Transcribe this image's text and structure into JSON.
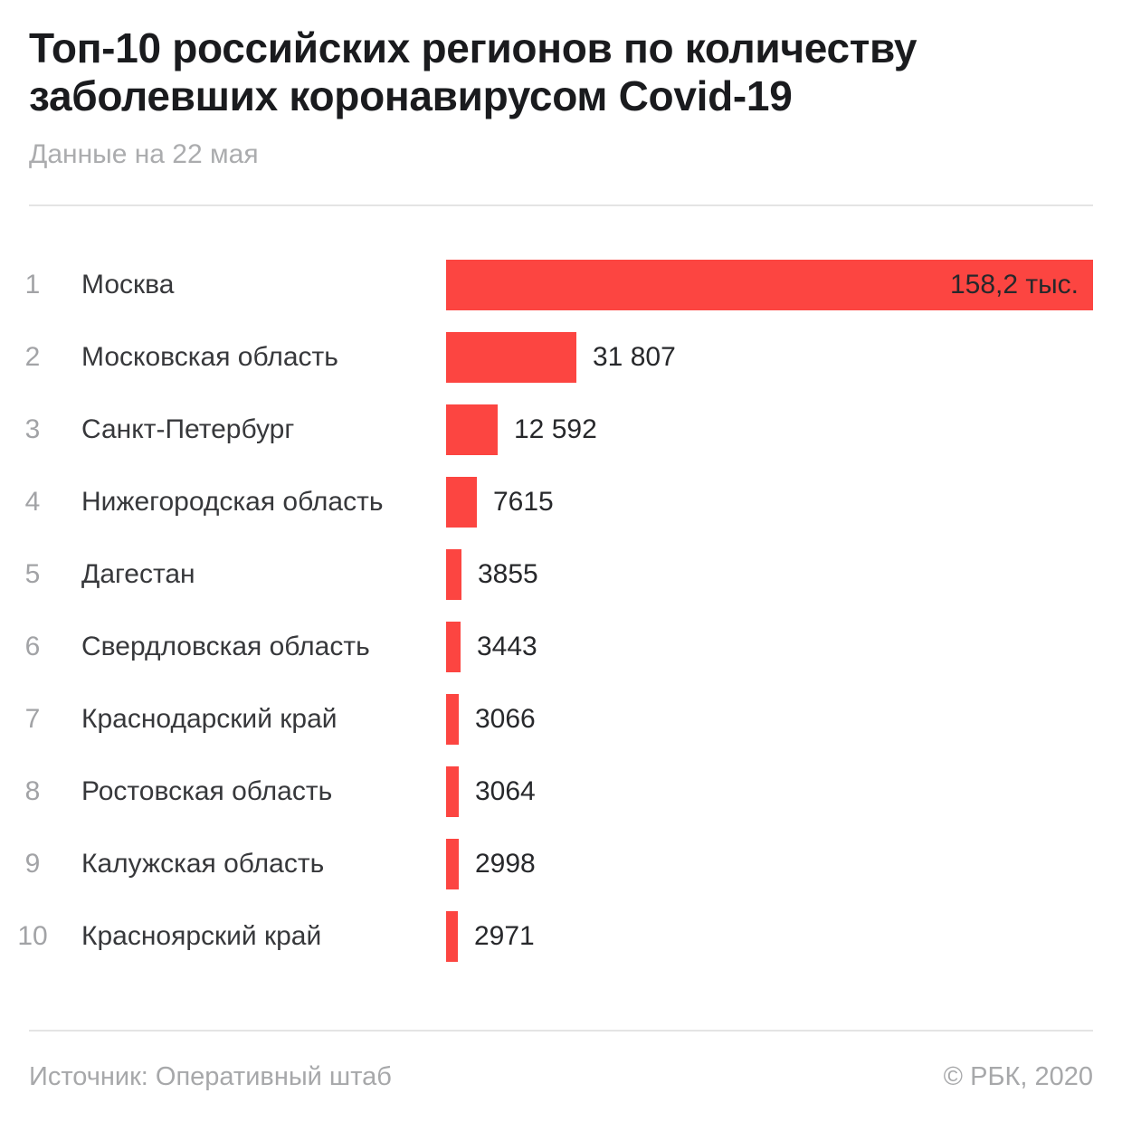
{
  "header": {
    "title": "Топ-10 российских регионов по количеству заболевших коронавирусом Covid-19",
    "subtitle": "Данные на 22 мая"
  },
  "footer": {
    "source": "Источник: Оперативный штаб",
    "copyright": "© РБК, 2020"
  },
  "colors": {
    "bar_red": "#FC4541",
    "title_dark": "#1A1B1E",
    "label_dark": "#37383B",
    "value_dark": "#27282B",
    "muted_gray": "#ABACAE",
    "divider_gray": "#E4E4E4"
  },
  "chart_data": {
    "type": "bar",
    "orientation": "horizontal",
    "title": "Топ-10 российских регионов по количеству заболевших коронавирусом Covid-19",
    "date_note": "Данные на 22 мая",
    "xlim": [
      0,
      158200
    ],
    "max_value": 158200,
    "bar_color": "#FC4541",
    "legend": false,
    "grid": false,
    "categories": [
      "Москва",
      "Московская область",
      "Санкт-Петербург",
      "Нижегородская область",
      "Дагестан",
      "Свердловская область",
      "Краснодарский край",
      "Ростовская область",
      "Калужская область",
      "Красноярский край"
    ],
    "values": [
      158200,
      31807,
      12592,
      7615,
      3855,
      3443,
      3066,
      3064,
      2998,
      2971
    ],
    "rows": [
      {
        "rank": "1",
        "region": "Москва",
        "value": 158200,
        "value_label": "158,2 тыс.",
        "label_inside": true
      },
      {
        "rank": "2",
        "region": "Московская область",
        "value": 31807,
        "value_label": "31 807",
        "label_inside": false
      },
      {
        "rank": "3",
        "region": "Санкт-Петербург",
        "value": 12592,
        "value_label": "12 592",
        "label_inside": false
      },
      {
        "rank": "4",
        "region": "Нижегородская область",
        "value": 7615,
        "value_label": "7615",
        "label_inside": false
      },
      {
        "rank": "5",
        "region": "Дагестан",
        "value": 3855,
        "value_label": "3855",
        "label_inside": false
      },
      {
        "rank": "6",
        "region": "Свердловская область",
        "value": 3443,
        "value_label": "3443",
        "label_inside": false
      },
      {
        "rank": "7",
        "region": "Краснодарский край",
        "value": 3066,
        "value_label": "3066",
        "label_inside": false
      },
      {
        "rank": "8",
        "region": "Ростовская область",
        "value": 3064,
        "value_label": "3064",
        "label_inside": false
      },
      {
        "rank": "9",
        "region": "Калужская область",
        "value": 2998,
        "value_label": "2998",
        "label_inside": false
      },
      {
        "rank": "10",
        "region": "Красноярский край",
        "value": 2971,
        "value_label": "2971",
        "label_inside": false
      }
    ]
  }
}
